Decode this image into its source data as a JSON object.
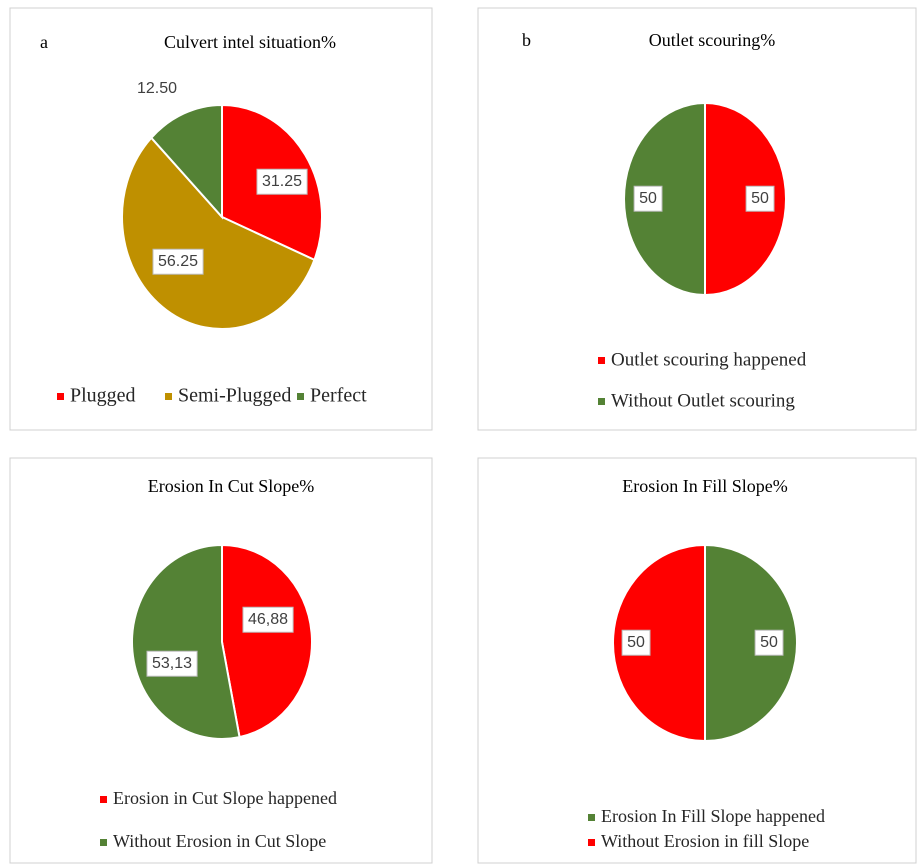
{
  "chart_data": [
    {
      "type": "pie",
      "panel_label": "a",
      "title": "Culvert intel situation%",
      "categories": [
        "Plugged",
        "Semi-Plugged",
        "Perfect"
      ],
      "values": [
        31.25,
        56.25,
        12.5
      ],
      "value_labels": [
        "31.25",
        "56.25",
        "12.50"
      ],
      "colors": [
        "#ff0000",
        "#bf9000",
        "#548235"
      ]
    },
    {
      "type": "pie",
      "panel_label": "b",
      "title": "Outlet scouring%",
      "categories": [
        "Outlet scouring happened",
        "Without Outlet scouring"
      ],
      "values": [
        50,
        50
      ],
      "colors": [
        "#ff0000",
        "#548235"
      ]
    },
    {
      "type": "pie",
      "title": "Erosion In Cut Slope%",
      "categories": [
        "Erosion in Cut Slope happened",
        "Without Erosion in Cut Slope"
      ],
      "values": [
        46.88,
        53.13
      ],
      "value_labels": [
        "46,88",
        "53,13"
      ],
      "colors": [
        "#ff0000",
        "#548235"
      ]
    },
    {
      "type": "pie",
      "title": "Erosion In Fill Slope%",
      "categories": [
        "Erosion In Fill Slope happened",
        "Without Erosion in fill Slope"
      ],
      "values": [
        50,
        50
      ],
      "colors": [
        "#548235",
        "#ff0000"
      ]
    }
  ]
}
